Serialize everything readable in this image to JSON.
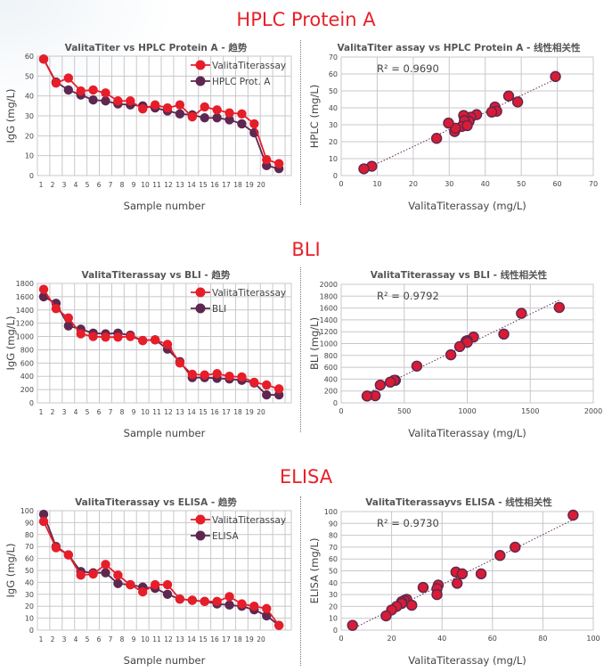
{
  "sections": [
    {
      "title": "HPLC Protein A"
    },
    {
      "title": "BLI"
    },
    {
      "title": "ELISA"
    }
  ],
  "colors": {
    "title_red": "#e8202a",
    "valita": "#e61e2a",
    "reference": "#5e2750",
    "grid": "#c8c8cc"
  },
  "chart_data": [
    {
      "type": "line",
      "title": "ValitaTiter vs HPLC Protein A - 趋势",
      "xlabel": "Sample number",
      "ylabel": "IgG (mg/L)",
      "ylim": [
        0,
        60
      ],
      "yticks": [
        "0",
        "10",
        "20",
        "30",
        "40",
        "50",
        "60"
      ],
      "xtick_labels": [
        "1",
        "2",
        "3",
        "4",
        "5",
        "6",
        "7",
        "8",
        "9",
        "10",
        "11",
        "12",
        "13",
        "14",
        "15",
        "16",
        "17",
        "18",
        "19",
        "20"
      ],
      "grid": true,
      "legend": "top-right",
      "series": [
        {
          "name": "ValitaTiterassay",
          "values": [
            58.5,
            46.5,
            49,
            42.5,
            43,
            41.5,
            37.5,
            37.5,
            33.5,
            35.5,
            34,
            35.5,
            29.5,
            34.5,
            33,
            31.5,
            31,
            26,
            8,
            6
          ]
        },
        {
          "name": "HPLC Prot. A",
          "values": [
            58.5,
            47,
            43,
            40.5,
            38,
            37.5,
            36,
            35.5,
            35,
            34,
            32.5,
            31,
            30.5,
            29,
            29,
            28,
            26,
            21.5,
            5,
            3.5
          ]
        }
      ]
    },
    {
      "type": "scatter",
      "title": "ValitaTiter assay vs HPLC Protein A - 线性相关性",
      "xlabel": "ValitaTiterassay (mg/L)",
      "ylabel": "HPLC (mg/L)",
      "xlim": [
        0,
        70
      ],
      "ylim": [
        0,
        70
      ],
      "xticks": [
        "0",
        "10",
        "20",
        "30",
        "40",
        "50",
        "60",
        "70"
      ],
      "yticks": [
        "0",
        "10",
        "20",
        "30",
        "40",
        "50",
        "60",
        "70"
      ],
      "annotation": "R² = 0.9690",
      "grid": true,
      "trendline": true,
      "points": [
        [
          59.5,
          58.5
        ],
        [
          46.5,
          47
        ],
        [
          49,
          43.5
        ],
        [
          42.7,
          40.5
        ],
        [
          43.2,
          38
        ],
        [
          41.8,
          37.5
        ],
        [
          37.6,
          36
        ],
        [
          36,
          34.5
        ],
        [
          34,
          35.5
        ],
        [
          35.5,
          32
        ],
        [
          34.2,
          32.5
        ],
        [
          33.5,
          29
        ],
        [
          35,
          29.5
        ],
        [
          31.5,
          26
        ],
        [
          31.7,
          28
        ],
        [
          29.8,
          31
        ],
        [
          26.5,
          22
        ],
        [
          8.5,
          5.5
        ],
        [
          6.3,
          4
        ]
      ]
    },
    {
      "type": "line",
      "title": "ValitaTiterassay vs BLI - 趋势",
      "xlabel": "Sample number",
      "ylabel": "IgG (mg/L)",
      "ylim": [
        0,
        1800
      ],
      "yticks": [
        "0",
        "200",
        "400",
        "600",
        "800",
        "1000",
        "1200",
        "1400",
        "1600",
        "1800"
      ],
      "xtick_labels": [
        "1",
        "2",
        "3",
        "4",
        "5",
        "6",
        "7",
        "8",
        "9",
        "10",
        "11",
        "12",
        "13",
        "14",
        "15",
        "16",
        "17",
        "18",
        "19",
        "20"
      ],
      "grid": true,
      "legend": "top-right",
      "series": [
        {
          "name": "ValitaTiterassay",
          "values": [
            1710,
            1420,
            1280,
            1040,
            1000,
            990,
            990,
            1000,
            940,
            950,
            880,
            600,
            430,
            420,
            440,
            400,
            390,
            310,
            270,
            210
          ]
        },
        {
          "name": "BLI",
          "values": [
            1600,
            1500,
            1160,
            1110,
            1050,
            1040,
            1050,
            1020,
            940,
            950,
            810,
            620,
            380,
            380,
            370,
            360,
            340,
            300,
            120,
            120
          ]
        }
      ]
    },
    {
      "type": "scatter",
      "title": "ValitaTiterassay vs BLI - 线性相关性",
      "xlabel": "ValitaTiterassay (mg/L)",
      "ylabel": "BLI (mg/L)",
      "xlim": [
        0,
        2000
      ],
      "ylim": [
        0,
        2000
      ],
      "xticks": [
        "0",
        "500",
        "1000",
        "1500",
        "2000"
      ],
      "yticks": [
        "0",
        "200",
        "400",
        "600",
        "800",
        "1000",
        "1200",
        "1400",
        "1600",
        "1800",
        "2000"
      ],
      "annotation": "R² = 0.9792",
      "grid": true,
      "trendline": true,
      "points": [
        [
          1730,
          1610
        ],
        [
          1430,
          1510
        ],
        [
          1290,
          1160
        ],
        [
          1050,
          1110
        ],
        [
          1000,
          1050
        ],
        [
          990,
          1040
        ],
        [
          1000,
          1020
        ],
        [
          940,
          950
        ],
        [
          870,
          810
        ],
        [
          600,
          620
        ],
        [
          430,
          380
        ],
        [
          420,
          380
        ],
        [
          390,
          350
        ],
        [
          310,
          300
        ],
        [
          270,
          120
        ],
        [
          205,
          115
        ]
      ]
    },
    {
      "type": "line",
      "title": "ValitaTiterassay vs ELISA - 趋势",
      "xlabel": "Sample number",
      "ylabel": "IgG (mg/L)",
      "ylim": [
        0,
        100
      ],
      "yticks": [
        "0",
        "10",
        "20",
        "30",
        "40",
        "50",
        "60",
        "70",
        "80",
        "90",
        "100"
      ],
      "xtick_labels": [
        "1",
        "2",
        "3",
        "4",
        "5",
        "6",
        "7",
        "8",
        "9",
        "10",
        "11",
        "12",
        "13",
        "14",
        "15",
        "16",
        "17",
        "18",
        "19",
        "20"
      ],
      "grid": true,
      "legend": "top-right",
      "series": [
        {
          "name": "ValitaTiterassay",
          "values": [
            91,
            69,
            63,
            46,
            47,
            55,
            46,
            38,
            32,
            38,
            38,
            26,
            25,
            24,
            24,
            28,
            22,
            20,
            18,
            4
          ]
        },
        {
          "name": "ELISA",
          "values": [
            97,
            70,
            63,
            49,
            48,
            48,
            39,
            38,
            36,
            35,
            30,
            26,
            25,
            24,
            22,
            21,
            20,
            17,
            12,
            4
          ]
        }
      ]
    },
    {
      "type": "scatter",
      "title": "ValitaTiterassayvs ELISA - 线性相关性",
      "xlabel": "ValitaTiterassay (mg/L)",
      "ylabel": "ELISA (mg/L)",
      "xlim": [
        0,
        100
      ],
      "ylim": [
        0,
        100
      ],
      "xticks": [
        "0",
        "20",
        "40",
        "60",
        "80",
        "100"
      ],
      "yticks": [
        "0",
        "10",
        "20",
        "30",
        "40",
        "50",
        "60",
        "70",
        "80",
        "90",
        "100"
      ],
      "annotation": "R² = 0.9730",
      "grid": true,
      "trendline": true,
      "points": [
        [
          92,
          97
        ],
        [
          69,
          70
        ],
        [
          63,
          63
        ],
        [
          45.5,
          49
        ],
        [
          48,
          47.5
        ],
        [
          55.5,
          47.5
        ],
        [
          46,
          39.5
        ],
        [
          38.5,
          38
        ],
        [
          32.5,
          36
        ],
        [
          38,
          35
        ],
        [
          38,
          30
        ],
        [
          26,
          26
        ],
        [
          25,
          25
        ],
        [
          24,
          24
        ],
        [
          24,
          22.5
        ],
        [
          28,
          21
        ],
        [
          22,
          20
        ],
        [
          20,
          17
        ],
        [
          17.8,
          12
        ],
        [
          4.5,
          4
        ]
      ]
    }
  ]
}
